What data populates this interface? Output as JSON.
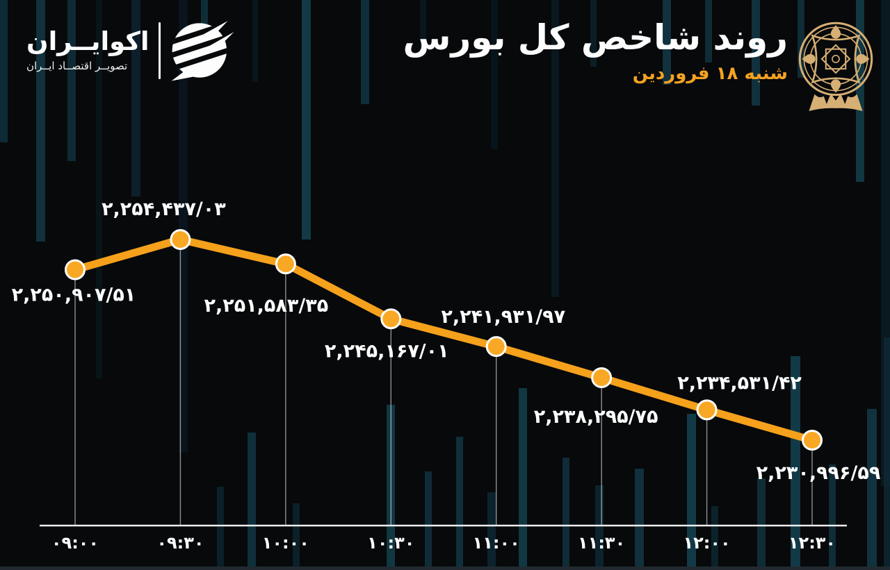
{
  "colors": {
    "background": "#07090b",
    "line_orange": "#F5A11C",
    "point_orange": "#F9A825",
    "date_orange": "#F5A222",
    "emblem_gold": "#D6AF74",
    "candle_teal": "#113440",
    "text_white": "#FFFFFF",
    "axis_white": "#EDEDED"
  },
  "header": {
    "title": "روند شاخص کل بورس",
    "subtitle": "شنبه ۱۸ فروردین",
    "brand_name": "اکوایــران",
    "brand_tagline": "تصویــر اقتصــاد ایــران"
  },
  "chart_data": {
    "type": "line",
    "title": "روند شاخص کل بورس",
    "x_labels": [
      "۰۹:۰۰",
      "۰۹:۳۰",
      "۱۰:۰۰",
      "۱۰:۳۰",
      "۱۱:۰۰",
      "۱۱:۳۰",
      "۱۲:۰۰",
      "۱۲:۳۰"
    ],
    "values": [
      2250907.51,
      2254437.03,
      2251583.35,
      2245167.01,
      2241931.97,
      2238295.75,
      2234531.42,
      2230996.59
    ],
    "value_labels": [
      "۲,۲۵۰,۹۰۷/۵۱",
      "۲,۲۵۴,۴۳۷/۰۳",
      "۲,۲۵۱,۵۸۳/۳۵",
      "۲,۲۴۵,۱۶۷/۰۱",
      "۲,۲۴۱,۹۳۱/۹۷",
      "۲,۲۳۸,۲۹۵/۷۵",
      "۲,۲۳۴,۵۳۱/۴۲",
      "۲,۲۳۰,۹۹۶/۵۹"
    ],
    "label_position": [
      "below",
      "above",
      "below",
      "below",
      "above",
      "below",
      "above",
      "below"
    ],
    "xlabel": "",
    "ylabel": "",
    "ylim": [
      2229000,
      2256000
    ],
    "grid": false,
    "legend": "none"
  }
}
